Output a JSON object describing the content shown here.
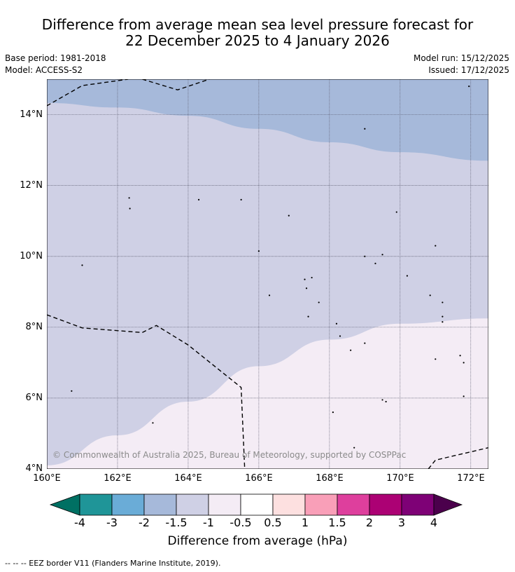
{
  "title": {
    "line1": "Difference from average mean sea level pressure forecast for",
    "line2": "22 December 2025 to 4 January 2026"
  },
  "meta": {
    "base_period": "Base period: 1981-2018",
    "model": "Model: ACCESS-S2",
    "model_run": "Model run: 15/12/2025",
    "issued": "Issued: 17/12/2025"
  },
  "map": {
    "lon_range": [
      160.0,
      172.5
    ],
    "lat_range": [
      4.0,
      15.0
    ],
    "y_ticks": [
      "14°N",
      "12°N",
      "10°N",
      "8°N",
      "6°N",
      "4°N"
    ],
    "x_ticks": [
      "160°E",
      "162°E",
      "164°E",
      "166°E",
      "168°E",
      "170°E",
      "172°E"
    ],
    "copyright": "© Commonwealth of Australia 2025, Bureau of Meteorology, supported by COSPPac",
    "regions": [
      {
        "category": "-1.5 to -1",
        "color": "#a6b9da",
        "boundary_lonlat": [
          [
            160.0,
            14.33
          ],
          [
            162.0,
            14.2
          ],
          [
            164.0,
            13.97
          ],
          [
            166.0,
            13.6
          ],
          [
            168.0,
            13.22
          ],
          [
            170.0,
            12.94
          ],
          [
            172.5,
            12.7
          ]
        ]
      },
      {
        "category": "-1 to -0.5",
        "color": "#cfd0e5"
      },
      {
        "category": "-0.5 to 0.5",
        "color": "#f4ecf5",
        "boundary_lonlat": [
          [
            160.0,
            4.1
          ],
          [
            162.0,
            4.95
          ],
          [
            164.0,
            5.9
          ],
          [
            166.0,
            6.9
          ],
          [
            168.0,
            7.65
          ],
          [
            170.0,
            8.1
          ],
          [
            172.5,
            8.25
          ]
        ]
      }
    ],
    "eez_borders_lonlat": [
      [
        [
          160.0,
          14.25
        ],
        [
          161.0,
          14.82
        ],
        [
          162.3,
          15.0
        ]
      ],
      [
        [
          162.7,
          15.0
        ],
        [
          163.7,
          14.7
        ],
        [
          164.6,
          15.0
        ]
      ],
      [
        [
          160.0,
          8.35
        ],
        [
          161.0,
          7.98
        ],
        [
          162.7,
          7.85
        ],
        [
          163.1,
          8.05
        ],
        [
          164.0,
          7.5
        ],
        [
          165.5,
          6.3
        ],
        [
          165.6,
          4.0
        ]
      ],
      [
        [
          170.8,
          4.0
        ],
        [
          171.0,
          4.25
        ],
        [
          172.5,
          4.6
        ]
      ]
    ],
    "islands_lonlat": [
      [
        162.35,
        11.35
      ],
      [
        162.33,
        11.65
      ],
      [
        164.3,
        11.6
      ],
      [
        165.5,
        11.6
      ],
      [
        166.85,
        11.15
      ],
      [
        169.9,
        11.25
      ],
      [
        171.0,
        10.3
      ],
      [
        166.0,
        10.15
      ],
      [
        169.0,
        10.0
      ],
      [
        169.5,
        10.05
      ],
      [
        169.3,
        9.8
      ],
      [
        161.0,
        9.75
      ],
      [
        170.2,
        9.45
      ],
      [
        167.3,
        9.35
      ],
      [
        167.5,
        9.4
      ],
      [
        167.35,
        9.1
      ],
      [
        166.3,
        8.9
      ],
      [
        167.7,
        8.7
      ],
      [
        170.85,
        8.9
      ],
      [
        171.2,
        8.7
      ],
      [
        171.2,
        8.3
      ],
      [
        171.2,
        8.15
      ],
      [
        167.4,
        8.3
      ],
      [
        168.2,
        8.1
      ],
      [
        168.3,
        7.75
      ],
      [
        168.6,
        7.35
      ],
      [
        169.0,
        7.55
      ],
      [
        171.0,
        7.1
      ],
      [
        171.8,
        7.0
      ],
      [
        171.7,
        7.2
      ],
      [
        160.7,
        6.2
      ],
      [
        171.8,
        6.05
      ],
      [
        169.6,
        5.9
      ],
      [
        169.5,
        5.95
      ],
      [
        163.0,
        5.3
      ],
      [
        168.1,
        5.6
      ],
      [
        168.7,
        4.6
      ],
      [
        169.0,
        13.6
      ],
      [
        171.95,
        14.8
      ]
    ]
  },
  "colorbar": {
    "title": "Difference from average (hPa)",
    "bins": [
      {
        "color": "#007063",
        "label": ""
      },
      {
        "color": "#1f9598",
        "label": "-4"
      },
      {
        "color": "#6aacd7",
        "label": "-3"
      },
      {
        "color": "#a6b9da",
        "label": "-2"
      },
      {
        "color": "#cfd0e5",
        "label": "-1.5"
      },
      {
        "color": "#f4ecf5",
        "label": "-1"
      },
      {
        "color": "#ffffff",
        "label": "-0.5"
      },
      {
        "color": "#fde0e0",
        "label": "0.5"
      },
      {
        "color": "#f99fb8",
        "label": "1"
      },
      {
        "color": "#de3f9d",
        "label": "1.5"
      },
      {
        "color": "#ac0174",
        "label": "2"
      },
      {
        "color": "#7e0176",
        "label": "3"
      },
      {
        "color": "#4b004c",
        "label": "4"
      }
    ]
  },
  "footer": "-- -- -- EEZ border V11 (Flanders Marine Institute, 2019)."
}
